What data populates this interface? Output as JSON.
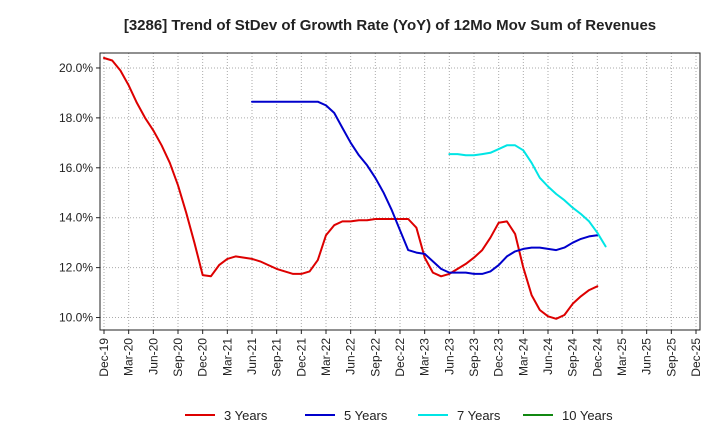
{
  "chart_data": {
    "type": "line",
    "title": "[3286]  Trend of StDev of Growth Rate (YoY) of 12Mo Mov Sum of Revenues",
    "xlabel": "",
    "ylabel": "",
    "ylim": [
      9.5,
      20.6
    ],
    "grid": true,
    "legend_position": "bottom",
    "x_tick_labels": [
      "Dec-19",
      "Mar-20",
      "Jun-20",
      "Sep-20",
      "Dec-20",
      "Mar-21",
      "Jun-21",
      "Sep-21",
      "Dec-21",
      "Mar-22",
      "Jun-22",
      "Sep-22",
      "Dec-22",
      "Mar-23",
      "Jun-23",
      "Sep-23",
      "Dec-23",
      "Mar-24",
      "Jun-24",
      "Sep-24",
      "Dec-24",
      "Mar-25",
      "Jun-25",
      "Sep-25",
      "Dec-25"
    ],
    "y_tick_labels": [
      "10.0%",
      "12.0%",
      "14.0%",
      "16.0%",
      "18.0%",
      "20.0%"
    ],
    "y_ticks": [
      10,
      12,
      14,
      16,
      18,
      20
    ],
    "x_start": "Dec-19",
    "x_end": "Mar-25",
    "series": [
      {
        "name": "3 Years",
        "color": "#dd0000",
        "start_month_index": 0,
        "values": [
          20.4,
          20.3,
          19.9,
          19.3,
          18.6,
          18.0,
          17.5,
          16.9,
          16.2,
          15.3,
          14.2,
          13.0,
          11.7,
          11.65,
          12.1,
          12.35,
          12.45,
          12.4,
          12.35,
          12.25,
          12.1,
          11.95,
          11.85,
          11.75,
          11.75,
          11.85,
          12.3,
          13.3,
          13.7,
          13.85,
          13.85,
          13.9,
          13.9,
          13.95,
          13.95,
          13.95,
          13.95,
          13.95,
          13.6,
          12.4,
          11.8,
          11.65,
          11.75,
          11.95,
          12.15,
          12.4,
          12.7,
          13.2,
          13.8,
          13.85,
          13.35,
          12.0,
          10.9,
          10.3,
          10.05,
          9.95,
          10.1,
          10.55,
          10.85,
          11.1,
          11.25
        ]
      },
      {
        "name": "5 Years",
        "color": "#0000cc",
        "start_month_index": 18,
        "values": [
          18.65,
          18.65,
          18.65,
          18.65,
          18.65,
          18.65,
          18.65,
          18.65,
          18.65,
          18.5,
          18.2,
          17.6,
          17.0,
          16.5,
          16.1,
          15.6,
          15.0,
          14.3,
          13.5,
          12.7,
          12.6,
          12.55,
          12.25,
          11.95,
          11.8,
          11.8,
          11.8,
          11.75,
          11.75,
          11.85,
          12.1,
          12.45,
          12.65,
          12.75,
          12.8,
          12.8,
          12.75,
          12.7,
          12.8,
          13.0,
          13.15,
          13.25,
          13.3
        ]
      },
      {
        "name": "7 Years",
        "color": "#00e5e5",
        "start_month_index": 42,
        "values": [
          16.55,
          16.55,
          16.5,
          16.5,
          16.55,
          16.6,
          16.75,
          16.9,
          16.9,
          16.7,
          16.2,
          15.6,
          15.25,
          14.95,
          14.7,
          14.4,
          14.15,
          13.85,
          13.4,
          12.85
        ]
      },
      {
        "name": "10 Years",
        "color": "#118811",
        "start_month_index": 0,
        "values": []
      }
    ]
  }
}
